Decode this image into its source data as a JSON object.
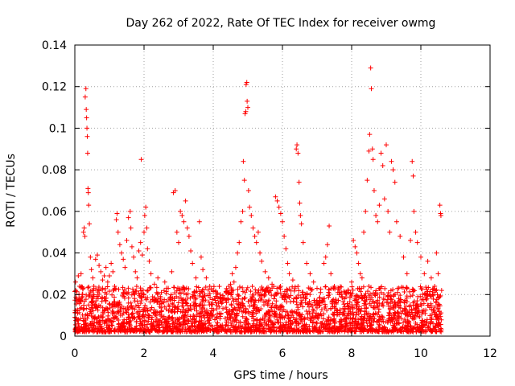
{
  "chart_data": {
    "type": "scatter",
    "title": "Day 262 of 2022, Rate Of TEC Index for receiver owmg",
    "xlabel": "GPS time / hours",
    "ylabel": "ROTI / TECUs",
    "xlim": [
      0,
      12
    ],
    "ylim": [
      0,
      0.14
    ],
    "xticks": [
      0,
      2,
      4,
      6,
      8,
      10,
      12
    ],
    "yticks": [
      0,
      0.02,
      0.04,
      0.06,
      0.08,
      0.1,
      0.12,
      0.14
    ],
    "xtick_labels": [
      "0",
      "2",
      "4",
      "6",
      "8",
      "10",
      "12"
    ],
    "ytick_labels": [
      "0",
      "0.02",
      "0.04",
      "0.06",
      "0.08",
      "0.1",
      "0.12",
      "0.14"
    ],
    "grid": true,
    "marker": "plus",
    "color": "#ff0000",
    "series": [
      {
        "name": "ROTI",
        "points": [
          [
            0.02,
            0.026
          ],
          [
            0.05,
            0.018
          ],
          [
            0.08,
            0.011
          ],
          [
            0.1,
            0.029
          ],
          [
            0.12,
            0.02
          ],
          [
            0.14,
            0.024
          ],
          [
            0.18,
            0.03
          ],
          [
            0.22,
            0.019
          ],
          [
            0.25,
            0.05
          ],
          [
            0.27,
            0.052
          ],
          [
            0.29,
            0.048
          ],
          [
            0.3,
            0.115
          ],
          [
            0.32,
            0.119
          ],
          [
            0.33,
            0.109
          ],
          [
            0.34,
            0.105
          ],
          [
            0.35,
            0.1
          ],
          [
            0.36,
            0.096
          ],
          [
            0.37,
            0.088
          ],
          [
            0.38,
            0.071
          ],
          [
            0.39,
            0.069
          ],
          [
            0.4,
            0.063
          ],
          [
            0.42,
            0.054
          ],
          [
            0.45,
            0.038
          ],
          [
            0.48,
            0.032
          ],
          [
            0.52,
            0.028
          ],
          [
            0.55,
            0.024
          ],
          [
            0.6,
            0.037
          ],
          [
            0.65,
            0.039
          ],
          [
            0.7,
            0.034
          ],
          [
            0.75,
            0.031
          ],
          [
            0.8,
            0.027
          ],
          [
            0.85,
            0.029
          ],
          [
            0.9,
            0.033
          ],
          [
            0.95,
            0.026
          ],
          [
            1.0,
            0.029
          ],
          [
            1.05,
            0.035
          ],
          [
            1.1,
            0.031
          ],
          [
            1.15,
            0.024
          ],
          [
            1.2,
            0.056
          ],
          [
            1.22,
            0.059
          ],
          [
            1.25,
            0.05
          ],
          [
            1.3,
            0.044
          ],
          [
            1.35,
            0.04
          ],
          [
            1.4,
            0.037
          ],
          [
            1.45,
            0.033
          ],
          [
            1.5,
            0.046
          ],
          [
            1.55,
            0.057
          ],
          [
            1.6,
            0.06
          ],
          [
            1.62,
            0.052
          ],
          [
            1.65,
            0.043
          ],
          [
            1.7,
            0.038
          ],
          [
            1.75,
            0.031
          ],
          [
            1.8,
            0.028
          ],
          [
            1.85,
            0.041
          ],
          [
            1.9,
            0.045
          ],
          [
            1.92,
            0.085
          ],
          [
            1.95,
            0.039
          ],
          [
            2.0,
            0.05
          ],
          [
            2.02,
            0.058
          ],
          [
            2.05,
            0.062
          ],
          [
            2.08,
            0.052
          ],
          [
            2.1,
            0.042
          ],
          [
            2.15,
            0.036
          ],
          [
            2.2,
            0.03
          ],
          [
            2.3,
            0.025
          ],
          [
            2.4,
            0.028
          ],
          [
            2.5,
            0.021
          ],
          [
            2.6,
            0.026
          ],
          [
            2.7,
            0.023
          ],
          [
            2.8,
            0.031
          ],
          [
            2.85,
            0.069
          ],
          [
            2.9,
            0.07
          ],
          [
            2.95,
            0.05
          ],
          [
            3.0,
            0.045
          ],
          [
            3.05,
            0.06
          ],
          [
            3.1,
            0.058
          ],
          [
            3.15,
            0.055
          ],
          [
            3.2,
            0.065
          ],
          [
            3.25,
            0.052
          ],
          [
            3.3,
            0.048
          ],
          [
            3.35,
            0.041
          ],
          [
            3.4,
            0.035
          ],
          [
            3.5,
            0.028
          ],
          [
            3.6,
            0.055
          ],
          [
            3.65,
            0.038
          ],
          [
            3.7,
            0.032
          ],
          [
            3.8,
            0.028
          ],
          [
            3.9,
            0.024
          ],
          [
            4.0,
            0.022
          ],
          [
            4.1,
            0.019
          ],
          [
            4.2,
            0.02
          ],
          [
            4.3,
            0.018
          ],
          [
            4.4,
            0.022
          ],
          [
            4.5,
            0.025
          ],
          [
            4.55,
            0.03
          ],
          [
            4.6,
            0.026
          ],
          [
            4.65,
            0.033
          ],
          [
            4.7,
            0.04
          ],
          [
            4.75,
            0.045
          ],
          [
            4.8,
            0.055
          ],
          [
            4.85,
            0.06
          ],
          [
            4.87,
            0.084
          ],
          [
            4.9,
            0.075
          ],
          [
            4.92,
            0.107
          ],
          [
            4.94,
            0.108
          ],
          [
            4.95,
            0.121
          ],
          [
            4.97,
            0.122
          ],
          [
            4.98,
            0.113
          ],
          [
            5.0,
            0.11
          ],
          [
            5.02,
            0.07
          ],
          [
            5.05,
            0.062
          ],
          [
            5.1,
            0.058
          ],
          [
            5.15,
            0.052
          ],
          [
            5.2,
            0.048
          ],
          [
            5.25,
            0.045
          ],
          [
            5.3,
            0.05
          ],
          [
            5.35,
            0.04
          ],
          [
            5.4,
            0.036
          ],
          [
            5.5,
            0.031
          ],
          [
            5.6,
            0.028
          ],
          [
            5.7,
            0.025
          ],
          [
            5.8,
            0.067
          ],
          [
            5.85,
            0.065
          ],
          [
            5.9,
            0.062
          ],
          [
            5.95,
            0.059
          ],
          [
            6.0,
            0.055
          ],
          [
            6.05,
            0.048
          ],
          [
            6.1,
            0.042
          ],
          [
            6.15,
            0.035
          ],
          [
            6.2,
            0.03
          ],
          [
            6.3,
            0.027
          ],
          [
            6.4,
            0.09
          ],
          [
            6.42,
            0.092
          ],
          [
            6.45,
            0.088
          ],
          [
            6.48,
            0.074
          ],
          [
            6.5,
            0.064
          ],
          [
            6.52,
            0.058
          ],
          [
            6.55,
            0.054
          ],
          [
            6.6,
            0.045
          ],
          [
            6.7,
            0.035
          ],
          [
            6.8,
            0.03
          ],
          [
            6.9,
            0.026
          ],
          [
            7.0,
            0.023
          ],
          [
            7.1,
            0.021
          ],
          [
            7.2,
            0.035
          ],
          [
            7.25,
            0.038
          ],
          [
            7.3,
            0.044
          ],
          [
            7.35,
            0.053
          ],
          [
            7.4,
            0.03
          ],
          [
            7.5,
            0.024
          ],
          [
            7.6,
            0.021
          ],
          [
            7.7,
            0.02
          ],
          [
            7.8,
            0.018
          ],
          [
            7.9,
            0.022
          ],
          [
            8.0,
            0.026
          ],
          [
            8.05,
            0.046
          ],
          [
            8.1,
            0.043
          ],
          [
            8.15,
            0.04
          ],
          [
            8.2,
            0.035
          ],
          [
            8.25,
            0.03
          ],
          [
            8.3,
            0.028
          ],
          [
            8.35,
            0.05
          ],
          [
            8.4,
            0.06
          ],
          [
            8.45,
            0.075
          ],
          [
            8.5,
            0.089
          ],
          [
            8.52,
            0.097
          ],
          [
            8.55,
            0.129
          ],
          [
            8.57,
            0.119
          ],
          [
            8.6,
            0.09
          ],
          [
            8.62,
            0.085
          ],
          [
            8.65,
            0.07
          ],
          [
            8.7,
            0.058
          ],
          [
            8.75,
            0.055
          ],
          [
            8.8,
            0.063
          ],
          [
            8.85,
            0.088
          ],
          [
            8.9,
            0.082
          ],
          [
            8.95,
            0.066
          ],
          [
            9.0,
            0.092
          ],
          [
            9.05,
            0.06
          ],
          [
            9.1,
            0.05
          ],
          [
            9.15,
            0.084
          ],
          [
            9.2,
            0.08
          ],
          [
            9.25,
            0.074
          ],
          [
            9.3,
            0.055
          ],
          [
            9.4,
            0.048
          ],
          [
            9.5,
            0.038
          ],
          [
            9.6,
            0.03
          ],
          [
            9.7,
            0.046
          ],
          [
            9.75,
            0.084
          ],
          [
            9.78,
            0.077
          ],
          [
            9.8,
            0.06
          ],
          [
            9.85,
            0.05
          ],
          [
            9.9,
            0.045
          ],
          [
            10.0,
            0.038
          ],
          [
            10.1,
            0.03
          ],
          [
            10.2,
            0.036
          ],
          [
            10.3,
            0.028
          ],
          [
            10.4,
            0.024
          ],
          [
            10.45,
            0.04
          ],
          [
            10.5,
            0.03
          ],
          [
            10.55,
            0.063
          ],
          [
            10.57,
            0.059
          ],
          [
            10.58,
            0.058
          ],
          [
            10.6,
            0.022
          ]
        ]
      }
    ],
    "baseline_band": {
      "x_start": 0.0,
      "x_end": 10.6,
      "y_min": 0.002,
      "y_max": 0.024,
      "density": "dense"
    }
  }
}
